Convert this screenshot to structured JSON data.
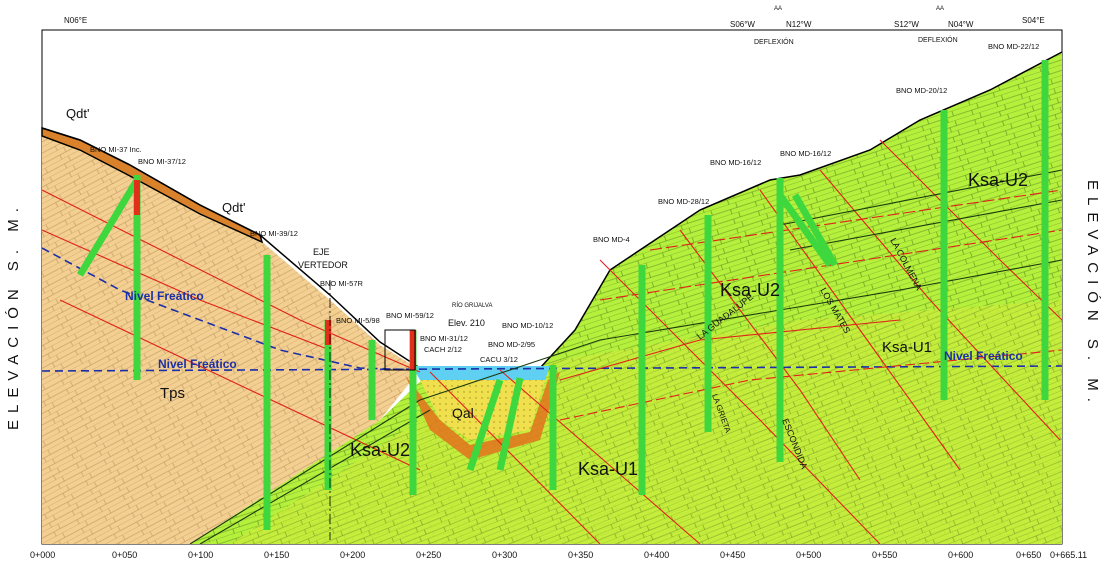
{
  "section": {
    "side_label": "ELEVACIÓN S. M.",
    "direction_left": "N06°E",
    "direction_right": "S04°E",
    "deflexion_1": {
      "label": "DEFLEXIÓN",
      "left": "S06°W",
      "right": "N12°W",
      "arrow": "AA"
    },
    "deflexion_2": {
      "label": "DEFLEXIÓN",
      "left": "S12°W",
      "right": "N04°W",
      "arrow": "AA"
    },
    "chainages": [
      "0+000",
      "0+050",
      "0+100",
      "0+150",
      "0+200",
      "0+250",
      "0+300",
      "0+350",
      "0+400",
      "0+450",
      "0+500",
      "0+550",
      "0+600",
      "0+650",
      "0+665.11"
    ],
    "units": {
      "qdt1": "Qdt'",
      "qdt2": "Qdt'",
      "tps": "Tps",
      "qal": "Qal",
      "ksa_u2_left": "Ksa-U2",
      "ksa_u1_center": "Ksa-U1",
      "ksa_u2_right": "Ksa-U2",
      "ksa_u2_top": "Ksa-U2",
      "ksa_u1_right": "Ksa-U1"
    },
    "water_table": {
      "label_1": "Nivel Freático",
      "label_2": "Nivel Freático",
      "label_3": "Nivel Freático",
      "color": "#1a2fa8"
    },
    "features": {
      "eje_vertedor": "EJE\nVERTEDOR",
      "rio": "RÍO GRIJALVA",
      "elev": "Elev. 210"
    },
    "faults": {
      "la_guadalupe": "LA GUADALUPE",
      "los_mates": "LOS MATES",
      "escondida": "ESCONDIDA",
      "la_grieta": "LA GRIETA",
      "la_colmena": "LA COLMENA"
    },
    "boreholes": [
      "BNO MI-37 Inc.",
      "BNO MI-37/12",
      "BNO MI-39/12",
      "BNO MI-57R",
      "BNO MI-5/98",
      "BNO MI-59/12",
      "BNO MI-31/12",
      "BNO MD-10/12",
      "BNO MD-2/95",
      "CACH 2/12",
      "CACU 3/12",
      "BNO MD-4",
      "BNO MD-28/12",
      "BNO MD-16/12",
      "BNO MD-16/12",
      "BNO MD-20/12",
      "BNO MD-22/12"
    ],
    "colors": {
      "ksa": "#a8f03a",
      "tps": "#f1c98a",
      "qdt": "#d9822b",
      "qal": "#f0e04e",
      "water": "#5fd0f2",
      "drill": "#3ed83e",
      "fault": "#e0221a"
    }
  }
}
